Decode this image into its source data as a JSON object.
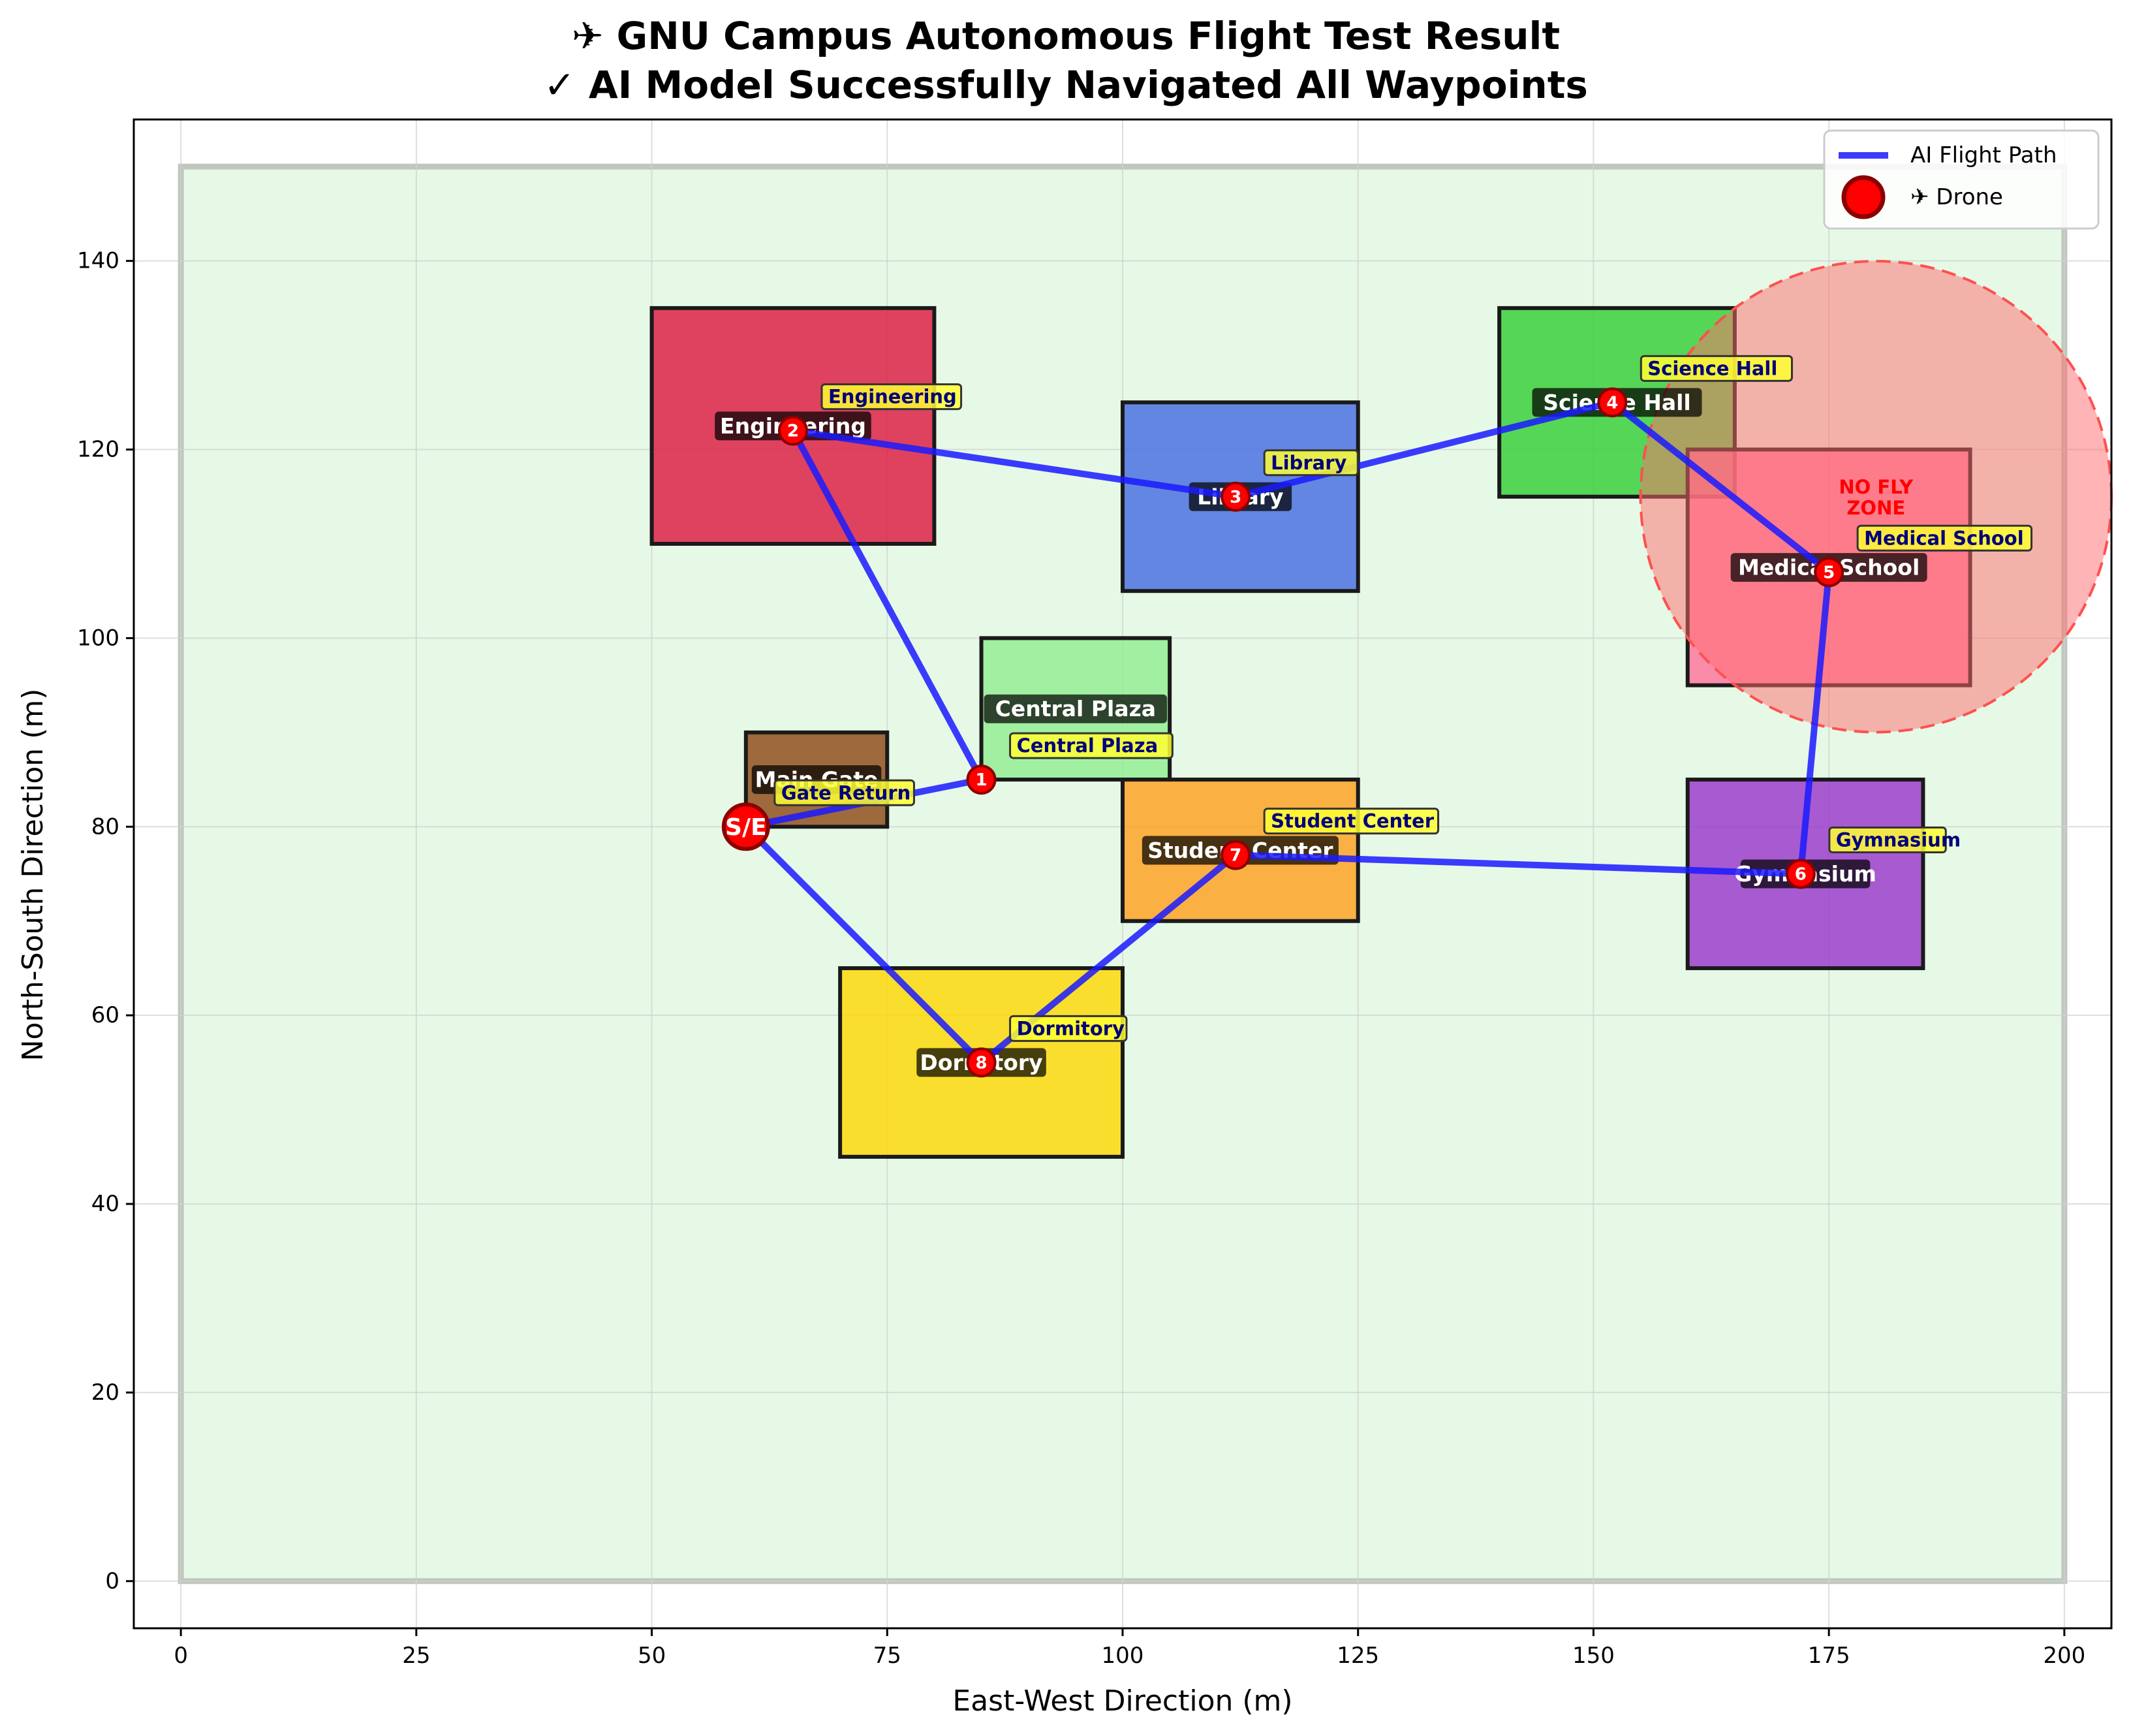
{
  "chart_data": {
    "type": "scatter",
    "title_lines": [
      "✈ GNU Campus Autonomous Flight Test Result",
      "✓ AI Model Successfully Navigated All Waypoints"
    ],
    "xlabel": "East-West Direction (m)",
    "ylabel": "North-South Direction (m)",
    "xlim": [
      -5,
      205
    ],
    "ylim": [
      -5,
      155
    ],
    "xticks": [
      0,
      25,
      50,
      75,
      100,
      125,
      150,
      175,
      200
    ],
    "yticks": [
      0,
      20,
      40,
      60,
      80,
      100,
      120,
      140
    ],
    "grid": true,
    "legend_placement": "top-right",
    "legend": [
      {
        "label": "AI Flight Path",
        "kind": "line",
        "color": "#1a1aff"
      },
      {
        "label": "✈ Drone",
        "kind": "marker",
        "color": "#ff0000"
      }
    ],
    "campus_boundary": {
      "x0": 0,
      "y0": 0,
      "x1": 200,
      "y1": 150,
      "fill": "#e6f9e6",
      "edge": "#bfc7bf"
    },
    "buildings": [
      {
        "name": "Engineering",
        "x0": 50,
        "y0": 110,
        "x1": 80,
        "y1": 135,
        "color": "#dc143c"
      },
      {
        "name": "Library",
        "x0": 100,
        "y0": 105,
        "x1": 125,
        "y1": 125,
        "color": "#4169e1"
      },
      {
        "name": "Science Hall",
        "x0": 140,
        "y0": 115,
        "x1": 165,
        "y1": 135,
        "color": "#32cd32"
      },
      {
        "name": "Medical School",
        "x0": 160,
        "y0": 95,
        "x1": 190,
        "y1": 120,
        "color": "#ff6f9a"
      },
      {
        "name": "Central Plaza",
        "x0": 85,
        "y0": 85,
        "x1": 105,
        "y1": 100,
        "color": "#90ee90"
      },
      {
        "name": "Main Gate",
        "x0": 60,
        "y0": 80,
        "x1": 75,
        "y1": 90,
        "color": "#8b4513"
      },
      {
        "name": "Student Center",
        "x0": 100,
        "y0": 70,
        "x1": 125,
        "y1": 85,
        "color": "#ff9d1a"
      },
      {
        "name": "Gymnasium",
        "x0": 160,
        "y0": 65,
        "x1": 185,
        "y1": 85,
        "color": "#9932cc"
      },
      {
        "name": "Dormitory",
        "x0": 70,
        "y0": 45,
        "x1": 100,
        "y1": 65,
        "color": "#ffd700"
      }
    ],
    "building_label_positions": [
      {
        "name": "Engineering",
        "x": 65,
        "y": 122.5
      },
      {
        "name": "Library",
        "x": 112.5,
        "y": 115
      },
      {
        "name": "Science Hall",
        "x": 152.5,
        "y": 125
      },
      {
        "name": "Medical School",
        "x": 175,
        "y": 107.5
      },
      {
        "name": "Central Plaza",
        "x": 95,
        "y": 92.5
      },
      {
        "name": "Main Gate",
        "x": 67.5,
        "y": 85
      },
      {
        "name": "Student Center",
        "x": 112.5,
        "y": 77.5
      },
      {
        "name": "Gymnasium",
        "x": 172.5,
        "y": 75
      },
      {
        "name": "Dormitory",
        "x": 85,
        "y": 55
      }
    ],
    "no_fly_zone": {
      "cx": 180,
      "cy": 115,
      "r": 25,
      "label_lines": [
        "NO FLY",
        "ZONE"
      ]
    },
    "start_end": {
      "x": 60,
      "y": 80,
      "label": "S/E"
    },
    "waypoints": [
      {
        "n": "1",
        "x": 85,
        "y": 85,
        "annotation": "Central Plaza"
      },
      {
        "n": "2",
        "x": 65,
        "y": 122,
        "annotation": "Engineering"
      },
      {
        "n": "3",
        "x": 112,
        "y": 115,
        "annotation": "Library"
      },
      {
        "n": "4",
        "x": 152,
        "y": 125,
        "annotation": "Science Hall"
      },
      {
        "n": "5",
        "x": 175,
        "y": 107,
        "annotation": "Medical School"
      },
      {
        "n": "6",
        "x": 172,
        "y": 75,
        "annotation": "Gymnasium"
      },
      {
        "n": "7",
        "x": 112,
        "y": 77,
        "annotation": "Student Center"
      },
      {
        "n": "8",
        "x": 85,
        "y": 55,
        "annotation": "Dormitory"
      }
    ],
    "return_annotation": "Gate Return",
    "path": [
      [
        60,
        80
      ],
      [
        85,
        85
      ],
      [
        65,
        122
      ],
      [
        112,
        115
      ],
      [
        152,
        125
      ],
      [
        175,
        107
      ],
      [
        172,
        75
      ],
      [
        112,
        77
      ],
      [
        85,
        55
      ],
      [
        60,
        80
      ]
    ]
  }
}
